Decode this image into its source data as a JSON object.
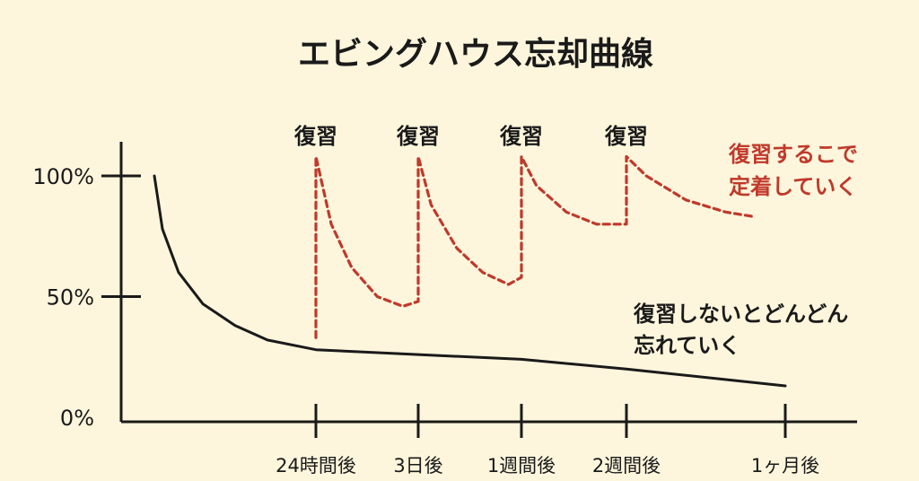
{
  "chart_data": {
    "type": "line",
    "title": "エビングハウス忘却曲線",
    "y_ticks": [
      "100%",
      "50%",
      "0%"
    ],
    "y_tick_values": [
      100,
      50,
      0
    ],
    "ylim": [
      0,
      100
    ],
    "x_ticks": [
      "24時間後",
      "3日後",
      "1週間後",
      "2週間後",
      "1ヶ月後"
    ],
    "x_tick_days": [
      1,
      3,
      7,
      14,
      30
    ],
    "review_label": "復習",
    "series": [
      {
        "color": "#1a1a1a",
        "style": "solid",
        "points": [
          [
            0,
            100
          ],
          [
            0.05,
            78
          ],
          [
            0.15,
            60
          ],
          [
            0.3,
            47
          ],
          [
            0.5,
            38
          ],
          [
            0.7,
            32
          ],
          [
            1.0,
            28
          ],
          [
            3,
            26
          ],
          [
            7,
            24
          ],
          [
            14,
            20
          ],
          [
            30,
            13
          ]
        ]
      },
      {
        "color": "#c0392b",
        "style": "dashed",
        "points": [
          [
            1,
            33
          ],
          [
            1,
            108
          ],
          [
            1.3,
            80
          ],
          [
            1.7,
            62
          ],
          [
            2.2,
            50
          ],
          [
            2.7,
            46
          ],
          [
            3,
            48
          ],
          [
            3,
            108
          ],
          [
            3.5,
            88
          ],
          [
            4.5,
            70
          ],
          [
            5.5,
            60
          ],
          [
            6.5,
            55
          ],
          [
            7,
            58
          ],
          [
            7,
            108
          ],
          [
            8,
            96
          ],
          [
            10,
            85
          ],
          [
            12,
            80
          ],
          [
            14,
            80
          ],
          [
            14,
            108
          ],
          [
            16,
            100
          ],
          [
            20,
            90
          ],
          [
            24,
            85
          ],
          [
            27,
            83
          ]
        ]
      }
    ],
    "annotations": {
      "red": [
        "復習するこで",
        "定着していく"
      ],
      "black": [
        "復習しないとどんどん",
        "忘れていく"
      ]
    }
  }
}
